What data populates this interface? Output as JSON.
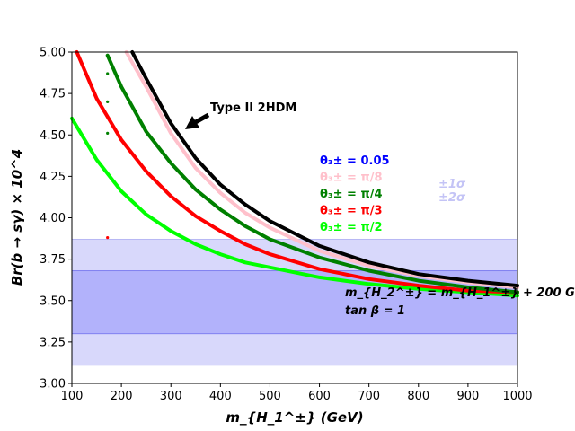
{
  "chart_data": {
    "type": "line",
    "title": "",
    "xlabel": "m_{H_1^±} (GeV)",
    "ylabel": "Br(b → sγ) × 10^4",
    "xlim": [
      100,
      1000
    ],
    "ylim": [
      3.0,
      5.0
    ],
    "xticks": [
      100,
      200,
      300,
      400,
      500,
      600,
      700,
      800,
      900,
      1000
    ],
    "yticks": [
      "3.00",
      "3.25",
      "3.50",
      "3.75",
      "4.00",
      "4.25",
      "4.50",
      "4.75",
      "5.00"
    ],
    "bands": [
      {
        "name": "±2σ",
        "ymin": 3.11,
        "ymax": 3.87,
        "color": "#d8d8fb"
      },
      {
        "name": "±1σ",
        "ymin": 3.3,
        "ymax": 3.68,
        "color": "#b2b2fb"
      }
    ],
    "series": [
      {
        "name": "Type II 2HDM",
        "color": "#000000",
        "x": [
          222,
          250,
          300,
          350,
          400,
          450,
          500,
          600,
          700,
          800,
          900,
          1000
        ],
        "y": [
          5.0,
          4.84,
          4.57,
          4.36,
          4.2,
          4.08,
          3.98,
          3.83,
          3.73,
          3.66,
          3.62,
          3.59
        ]
      },
      {
        "name": "θ₃± = 0.05",
        "color": "#0000ff",
        "x": [
          222,
          250,
          300,
          350,
          400,
          450,
          500,
          600,
          700,
          800,
          900,
          1000
        ],
        "y": [
          5.0,
          4.84,
          4.57,
          4.36,
          4.2,
          4.08,
          3.98,
          3.83,
          3.73,
          3.66,
          3.62,
          3.59
        ]
      },
      {
        "name": "θ₃± = π/8",
        "color": "#ffc0cb",
        "x": [
          210,
          250,
          300,
          350,
          400,
          450,
          500,
          600,
          700,
          800,
          900,
          1000
        ],
        "y": [
          5.0,
          4.79,
          4.51,
          4.3,
          4.15,
          4.03,
          3.94,
          3.8,
          3.71,
          3.65,
          3.61,
          3.58
        ]
      },
      {
        "name": "θ₃± = π/4",
        "color": "#008000",
        "x": [
          172,
          200,
          250,
          300,
          350,
          400,
          450,
          500,
          600,
          700,
          800,
          900,
          1000
        ],
        "y": [
          4.98,
          4.79,
          4.52,
          4.33,
          4.17,
          4.05,
          3.95,
          3.87,
          3.76,
          3.68,
          3.62,
          3.58,
          3.55
        ]
      },
      {
        "name": "θ₃± = π/3",
        "color": "#ff0000",
        "x": [
          110,
          150,
          200,
          250,
          300,
          350,
          400,
          450,
          500,
          600,
          700,
          800,
          900,
          1000
        ],
        "y": [
          5.0,
          4.72,
          4.47,
          4.28,
          4.13,
          4.01,
          3.92,
          3.84,
          3.78,
          3.69,
          3.63,
          3.59,
          3.56,
          3.55
        ]
      },
      {
        "name": "θ₃± = π/2",
        "color": "#00ff00",
        "x": [
          100,
          150,
          200,
          250,
          300,
          350,
          400,
          450,
          500,
          600,
          700,
          800,
          900,
          1000
        ],
        "y": [
          4.6,
          4.35,
          4.16,
          4.02,
          3.92,
          3.84,
          3.78,
          3.73,
          3.7,
          3.64,
          3.6,
          3.57,
          3.55,
          3.53
        ]
      }
    ],
    "scatter_points": [
      {
        "x": 172,
        "y": 4.87,
        "color": "#008000"
      },
      {
        "x": 172,
        "y": 4.7,
        "color": "#008000"
      },
      {
        "x": 172,
        "y": 4.51,
        "color": "#008000"
      },
      {
        "x": 172,
        "y": 3.88,
        "color": "#ff0000"
      }
    ],
    "annotation": {
      "text": "Type II 2HDM",
      "x": 330,
      "y": 4.53
    },
    "band_legend": [
      {
        "text": "±1σ"
      },
      {
        "text": "±2σ"
      }
    ],
    "notes": [
      {
        "text": "m_{H_2^±} = m_{H_1^±} + 200 GeV"
      },
      {
        "text": "tan β = 1"
      }
    ]
  }
}
